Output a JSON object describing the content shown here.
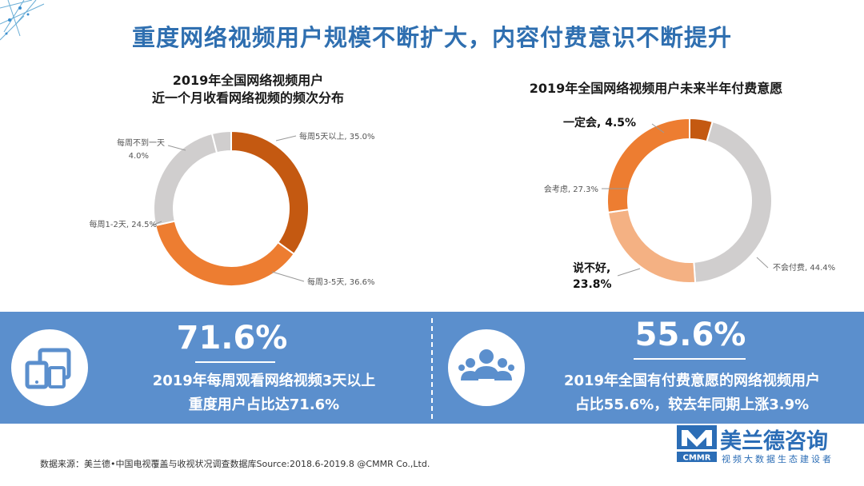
{
  "header": {
    "title": "重度网络视频用户规模不断扩大，内容付费意识不断提升"
  },
  "chart_data": [
    {
      "type": "pie",
      "title_lines": [
        "2019年全国网络视频用户",
        "近一个月收看网络视频的频次分布"
      ],
      "categories": [
        "每周5天以上",
        "每周3-5天",
        "每周1-2天",
        "每周不到一天"
      ],
      "values": [
        35.0,
        36.6,
        24.5,
        4.0
      ],
      "value_labels": [
        "35.0%",
        "36.6%",
        "24.5%",
        "4.0%"
      ],
      "colors": [
        "#c45911",
        "#ed7d31",
        "#d0cece",
        "#d0cece"
      ],
      "donut": true
    },
    {
      "type": "pie",
      "title_lines": [
        "2019年全国网络视频用户未来半年付费意愿"
      ],
      "categories": [
        "一定会",
        "不会付费",
        "说不好",
        "会考虑"
      ],
      "values": [
        4.5,
        44.4,
        23.8,
        27.3
      ],
      "value_labels": [
        "4.5%",
        "44.4%",
        "23.8%",
        "27.3%"
      ],
      "colors": [
        "#c45911",
        "#d0cece",
        "#f4b183",
        "#ed7d31"
      ],
      "donut": true
    }
  ],
  "stats": [
    {
      "number": "71.6%",
      "line1": "2019年每周观看网络视频3天以上",
      "line2": "重度用户占比达71.6%",
      "icon": "devices-icon"
    },
    {
      "number": "55.6%",
      "line1": "2019年全国有付费意愿的网络视频用户",
      "line2": "占比55.6%，较去年同期上涨3.9%",
      "icon": "people-group-icon"
    }
  ],
  "footer": {
    "source": "数据来源：美兰德•中国电视覆盖与收视状况调查数据库Source:2018.6-2019.8 @CMMR Co.,Ltd.",
    "logo_name": "美兰德咨询",
    "logo_mark": "CMMR",
    "logo_sub": "视频大数据生态建设者"
  },
  "colors": {
    "title_blue": "#2f6fb0",
    "band_blue": "#5b8fcd",
    "dark_orange": "#c45911",
    "orange": "#ed7d31",
    "light_orange": "#f4b183",
    "grey": "#d0cece"
  }
}
